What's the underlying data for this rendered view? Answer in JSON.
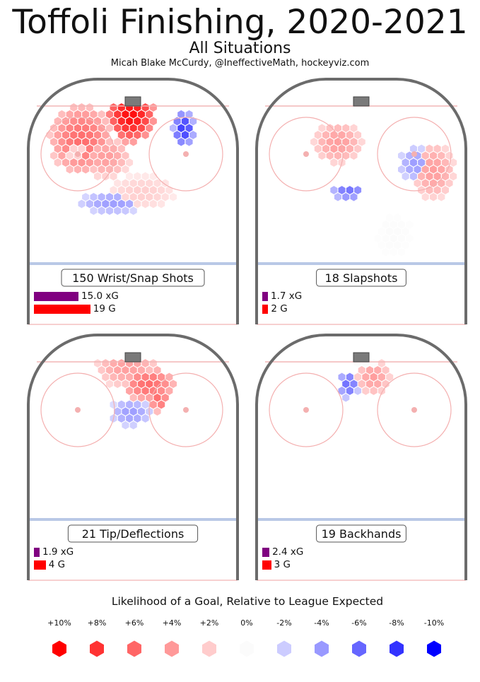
{
  "header": {
    "title": "Toffoli Finishing, 2020-2021",
    "subtitle": "All Situations",
    "credit": "Micah Blake McCurdy, @IneffectiveMath, hockeyviz.com"
  },
  "colors": {
    "rink_boards": "#6b6b6b",
    "goal_line": "#f2b5b5",
    "blue_line": "#b9c8e6",
    "faceoff_circle": "#f4b0b0",
    "xg_bar": "#800080",
    "goal_bar": "#ff0000",
    "net": "#7a7a7a"
  },
  "chart_data": {
    "type": "heatmap",
    "xg_unit": "xG",
    "goal_unit": "G",
    "panels": [
      {
        "label": "150 Wrist/Snap Shots",
        "shots": 150,
        "xg": 15.0,
        "xg_text": "15.0 xG",
        "goals": 19,
        "goals_text": "19 G"
      },
      {
        "label": "18 Slapshots",
        "shots": 18,
        "xg": 1.7,
        "xg_text": "1.7 xG",
        "goals": 2,
        "goals_text": "2 G"
      },
      {
        "label": "21 Tip/Deflections",
        "shots": 21,
        "xg": 1.9,
        "xg_text": "1.9 xG",
        "goals": 4,
        "goals_text": "4 G"
      },
      {
        "label": "19 Backhands",
        "shots": 19,
        "xg": 2.4,
        "xg_text": "2.4 xG",
        "goals": 3,
        "goals_text": "3 G"
      }
    ],
    "legend": {
      "title": "Likelihood of a Goal, Relative to League Expected",
      "steps": [
        {
          "label": "+10%",
          "value": 10,
          "color": "#ff0000"
        },
        {
          "label": "+8%",
          "value": 8,
          "color": "#ff3333"
        },
        {
          "label": "+6%",
          "value": 6,
          "color": "#ff6666"
        },
        {
          "label": "+4%",
          "value": 4,
          "color": "#ff9999"
        },
        {
          "label": "+2%",
          "value": 2,
          "color": "#ffcccc"
        },
        {
          "label": "0%",
          "value": 0,
          "color": "#fbfbfb"
        },
        {
          "label": "-2%",
          "value": -2,
          "color": "#ccccff"
        },
        {
          "label": "-4%",
          "value": -4,
          "color": "#9999ff"
        },
        {
          "label": "-6%",
          "value": -6,
          "color": "#6666ff"
        },
        {
          "label": "-8%",
          "value": -8,
          "color": "#3333ff"
        },
        {
          "label": "-10%",
          "value": -10,
          "color": "#0000ff"
        }
      ]
    }
  }
}
